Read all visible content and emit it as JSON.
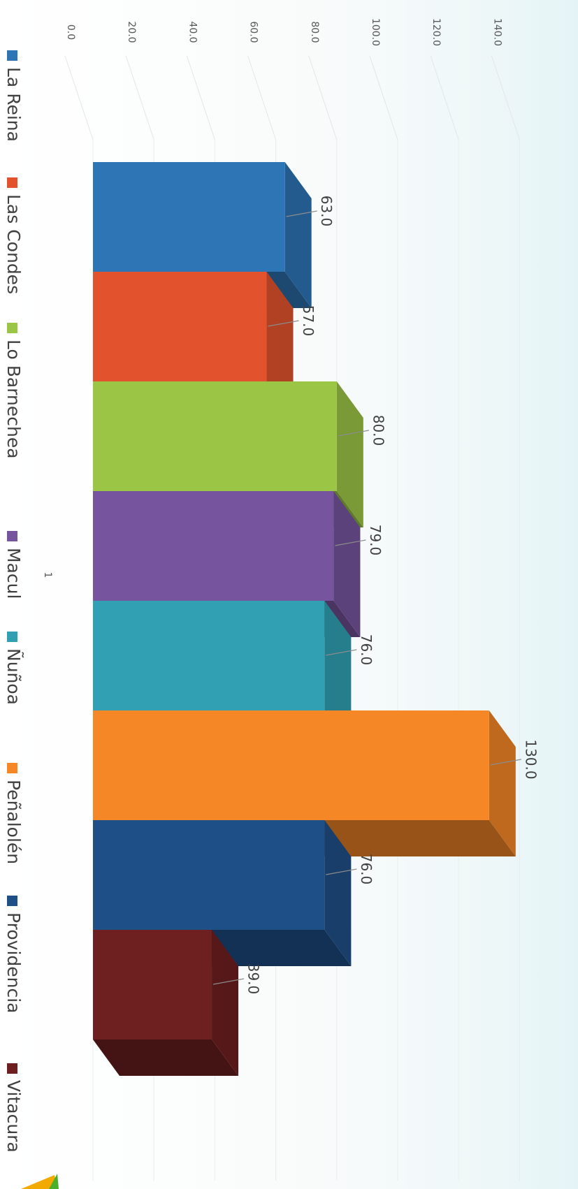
{
  "chart_data": {
    "type": "bar",
    "orientation": "horizontal-3d",
    "categories": [
      "1"
    ],
    "series": [
      {
        "name": "La Reina",
        "values": [
          63.0
        ],
        "color": "#2e75b6"
      },
      {
        "name": "Las Condes",
        "values": [
          57.0
        ],
        "color": "#e2532d"
      },
      {
        "name": "Lo Barnechea",
        "values": [
          80.0
        ],
        "color": "#9bc545"
      },
      {
        "name": "Macul",
        "values": [
          79.0
        ],
        "color": "#76549e"
      },
      {
        "name": "Ñuñoa",
        "values": [
          76.0
        ],
        "color": "#31a0b3"
      },
      {
        "name": "Peñalolén",
        "values": [
          130.0
        ],
        "color": "#f58727"
      },
      {
        "name": "Providencia",
        "values": [
          76.0
        ],
        "color": "#1f4f87"
      },
      {
        "name": "Vitacura",
        "values": [
          39.0
        ],
        "color": "#6e1f1f"
      }
    ],
    "data_labels": [
      "63.0",
      "57.0",
      "80.0",
      "79.0",
      "76.0",
      "130.0",
      "76.0",
      "39.0"
    ],
    "xlim": [
      0,
      140
    ],
    "ticks": [
      "0.0",
      "20.0",
      "40.0",
      "60.0",
      "80.0",
      "100.0",
      "120.0",
      "140.0"
    ],
    "grid": true,
    "legend_position": "bottom",
    "title": "",
    "xlabel": "",
    "ylabel": ""
  }
}
